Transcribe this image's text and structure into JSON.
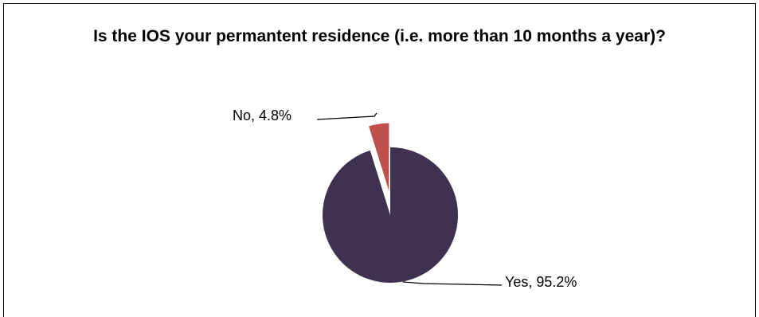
{
  "chart_data": {
    "type": "pie",
    "title": "Is the IOS your permantent residence (i.e. more than 10 months a year)?",
    "slices": [
      {
        "label": "Yes",
        "value": 95.2,
        "text": "Yes, 95.2%",
        "color": "#3f3150"
      },
      {
        "label": "No",
        "value": 4.8,
        "text": "No, 4.8%",
        "color": "#c0504d"
      }
    ],
    "legend": "none"
  }
}
